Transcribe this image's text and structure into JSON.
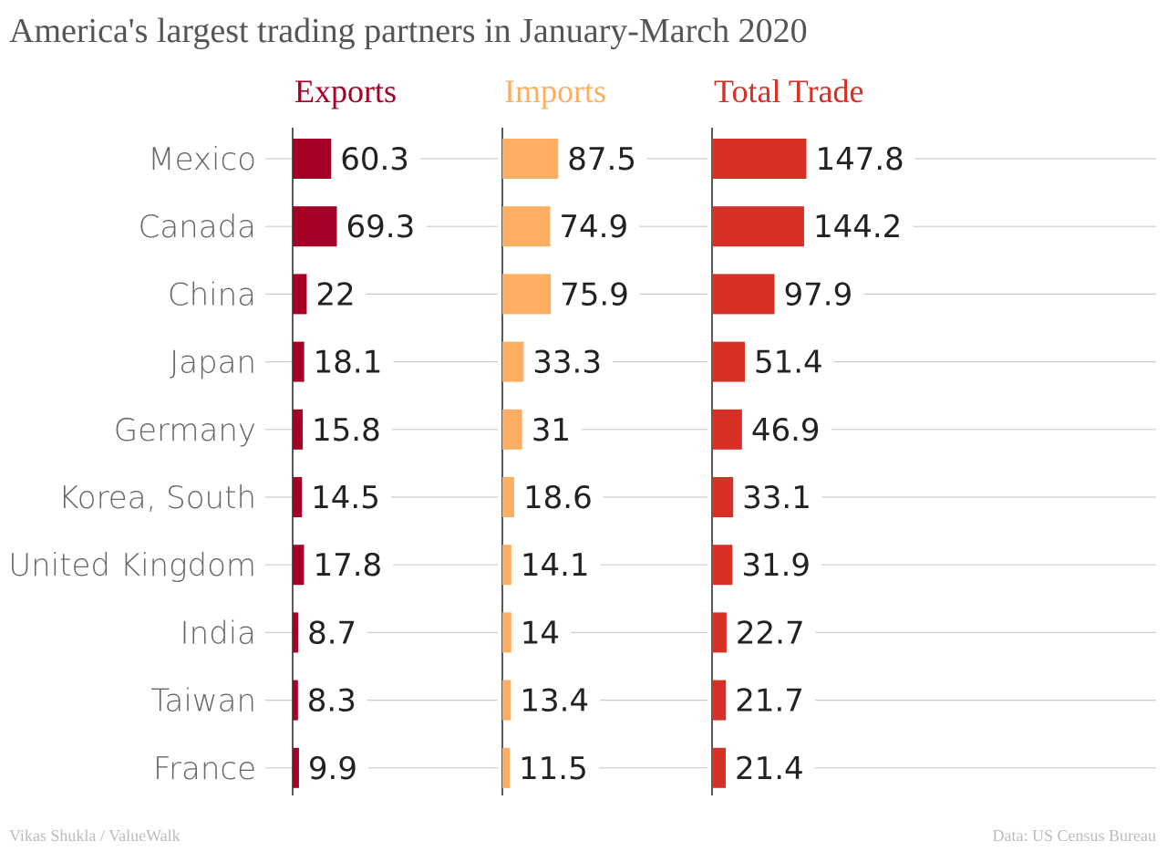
{
  "header": {
    "title": "America's largest trading partners in January-March 2020"
  },
  "footer": {
    "credit": "Vikas Shukla / ValueWalk",
    "source": "Data: US Census Bureau"
  },
  "chart_data": {
    "type": "bar",
    "orientation": "horizontal",
    "layout": "small-multiples",
    "categories": [
      "Mexico",
      "Canada",
      "China",
      "Japan",
      "Germany",
      "Korea, South",
      "United Kingdom",
      "India",
      "Taiwan",
      "France"
    ],
    "series": [
      {
        "name": "Exports",
        "color": "#a50026",
        "values": [
          60.3,
          69.3,
          22,
          18.1,
          15.8,
          14.5,
          17.8,
          8.7,
          8.3,
          9.9
        ]
      },
      {
        "name": "Imports",
        "color": "#fdae61",
        "values": [
          87.5,
          74.9,
          75.9,
          33.3,
          31,
          18.6,
          14.1,
          14,
          13.4,
          11.5
        ]
      },
      {
        "name": "Total Trade",
        "color": "#d73027",
        "values": [
          147.8,
          144.2,
          97.9,
          51.4,
          46.9,
          33.1,
          31.9,
          22.7,
          21.7,
          21.4
        ]
      }
    ],
    "grid": true,
    "data_labels": true
  }
}
